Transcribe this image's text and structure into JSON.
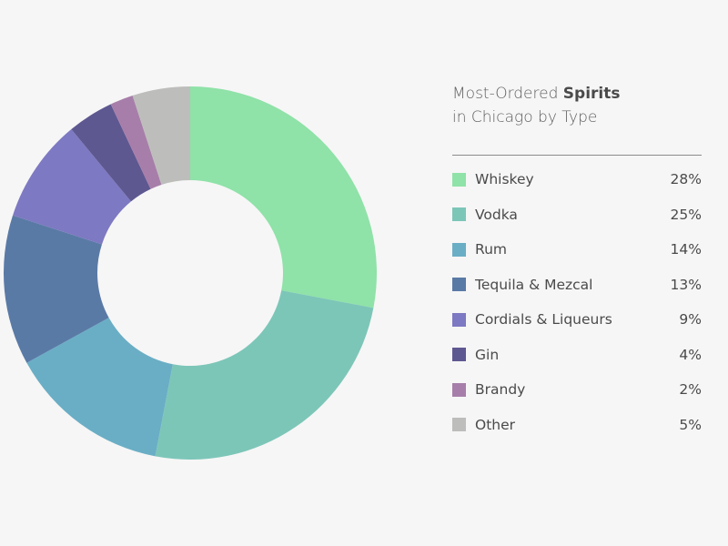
{
  "chart_data": {
    "type": "pie",
    "variant": "donut",
    "title_prefix": "Most-Ordered ",
    "title_bold": "Spirits",
    "subtitle": "in Chicago by Type",
    "legend_position": "right",
    "slices": [
      {
        "label": "Whiskey",
        "value": 28,
        "display": "28%",
        "color": "#8fe2a8"
      },
      {
        "label": "Vodka",
        "value": 25,
        "display": "25%",
        "color": "#7cc6b8"
      },
      {
        "label": "Rum",
        "value": 14,
        "display": "14%",
        "color": "#6aaec5"
      },
      {
        "label": "Tequila & Mezcal",
        "value": 13,
        "display": "13%",
        "color": "#5a7aa6"
      },
      {
        "label": "Cordials & Liqueurs",
        "value": 9,
        "display": "9%",
        "color": "#7d79c2"
      },
      {
        "label": "Gin",
        "value": 4,
        "display": "4%",
        "color": "#5e5891"
      },
      {
        "label": "Brandy",
        "value": 2,
        "display": "2%",
        "color": "#a77ea9"
      },
      {
        "label": "Other",
        "value": 5,
        "display": "5%",
        "color": "#bdbebb"
      }
    ]
  }
}
